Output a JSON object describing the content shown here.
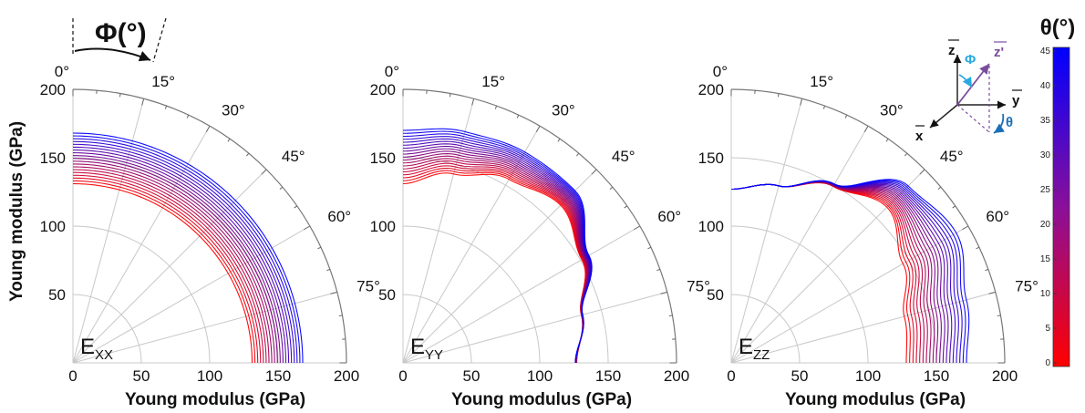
{
  "chart_data": {
    "type": "polar-line",
    "figure_labels": {
      "phi": "Φ(°)",
      "theta": "θ(°)",
      "x_axis": "Young modulus (GPa)",
      "y_axis": "Young modulus (GPa)"
    },
    "radial_range": [
      0,
      200
    ],
    "radial_ticks": [
      0,
      50,
      100,
      150,
      200
    ],
    "y_tick_labels": [
      "50",
      "100",
      "150",
      "200"
    ],
    "x_tick_labels": [
      "0",
      "50",
      "100",
      "150",
      "200"
    ],
    "angle_labels": [
      "0°",
      "15°",
      "30°",
      "45°",
      "60°",
      "75°"
    ],
    "angular_range_deg": [
      0,
      90
    ],
    "angle_reference": "phi measured from the vertical axis",
    "theta_range_deg": [
      0,
      45
    ],
    "theta_step_deg": 2.5,
    "colorbar": {
      "ticks": [
        0,
        5,
        10,
        15,
        20,
        25,
        30,
        35,
        40,
        45
      ],
      "min_color": "#ff0000",
      "max_color": "#0000ff",
      "orientation": "vertical",
      "placement": "right"
    },
    "panels": [
      {
        "name_main": "E",
        "name_sub": "XX",
        "endpoint_profiles": {
          "theta_0": {
            "phi": [
              0,
              15,
              30,
              45,
              60,
              75,
              90
            ],
            "r": [
              131,
              131,
              131,
              131,
              131,
              131,
              131
            ]
          },
          "theta_45": {
            "phi": [
              0,
              15,
              30,
              45,
              60,
              75,
              90
            ],
            "r": [
              168,
              168,
              168,
              168,
              168,
              168,
              168
            ]
          }
        }
      },
      {
        "name_main": "E",
        "name_sub": "YY",
        "endpoint_profiles": {
          "theta_0": {
            "phi": [
              0,
              15,
              30,
              45,
              60,
              75,
              90
            ],
            "r": [
              131,
              143,
              155,
              163,
              151,
              135,
              127
            ]
          },
          "theta_45": {
            "phi": [
              0,
              15,
              30,
              45,
              60,
              75,
              90
            ],
            "r": [
              170,
              175,
              178,
              178,
              157,
              136,
              126
            ]
          }
        }
      },
      {
        "name_main": "E",
        "name_sub": "ZZ",
        "endpoint_profiles": {
          "theta_0": {
            "phi": [
              0,
              15,
              30,
              45,
              60,
              75,
              90
            ],
            "r": [
              127,
              134,
              149,
              161,
              145,
              131,
              128
            ]
          },
          "theta_45": {
            "phi": [
              0,
              15,
              30,
              45,
              60,
              75,
              90
            ],
            "r": [
              127,
              134,
              151,
              183,
              190,
              178,
              172
            ]
          }
        }
      }
    ],
    "inset": {
      "labels": [
        "z",
        "z'",
        "y",
        "x",
        "Φ",
        "θ"
      ],
      "colors": {
        "phi": "#29a9e0",
        "theta": "#1a6fb5",
        "z_prime": "#7a4d9c"
      }
    }
  }
}
